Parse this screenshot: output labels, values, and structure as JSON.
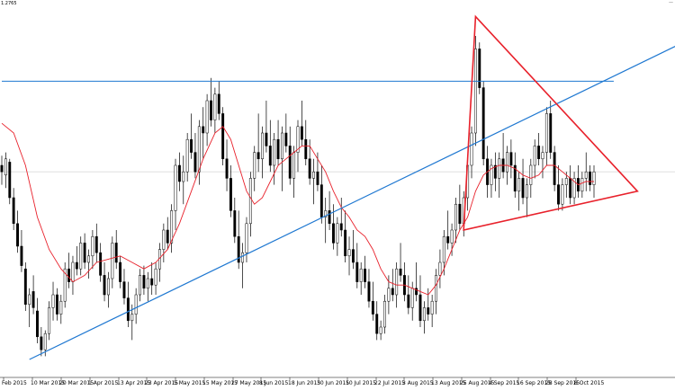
{
  "header": {
    "price_label": "1.2765",
    "corner_mark": "—"
  },
  "colors": {
    "candle_up": "#ffffff",
    "candle_down": "#000000",
    "wick": "#000000",
    "moving_average": "#e8212b",
    "support_line": "#1f78d1",
    "horizontal_line": "#1f78d1",
    "triangle": "#e8212b",
    "grid_line": "#d9d9d9"
  },
  "chart_data": {
    "type": "candlestick",
    "title": "",
    "xlabel": "",
    "ylabel": "",
    "ylim": [
      0,
      100
    ],
    "grid": "one light horizontal line at the current price level",
    "x_tick_labels": [
      "Feb 2015",
      "10 Mar 2015",
      "20 Mar 2015",
      "1 Apr 2015",
      "13 Apr 2015",
      "23 Apr 2015",
      "5 May 2015",
      "15 May 2015",
      "27 May 2015",
      "8 Jun 2015",
      "18 Jun 2015",
      "30 Jun 2015",
      "10 Jul 2015",
      "22 Jul 2015",
      "3 Aug 2015",
      "13 Aug 2015",
      "25 Aug 2015",
      "4 Sep 2015",
      "16 Sep 2015",
      "28 Sep 2015",
      "8 Oct 2015"
    ],
    "candles": [
      [
        0,
        60,
        63,
        54,
        58
      ],
      [
        1,
        57,
        64,
        53,
        62
      ],
      [
        2,
        61,
        62,
        48,
        50
      ],
      [
        3,
        50,
        53,
        40,
        42
      ],
      [
        4,
        42,
        46,
        33,
        35
      ],
      [
        5,
        35,
        40,
        27,
        29
      ],
      [
        6,
        28,
        30,
        15,
        17
      ],
      [
        7,
        17,
        22,
        10,
        20
      ],
      [
        8,
        21,
        26,
        14,
        16
      ],
      [
        9,
        15,
        19,
        5,
        7
      ],
      [
        10,
        7,
        10,
        1,
        3
      ],
      [
        11,
        3,
        9,
        1,
        8
      ],
      [
        12,
        8,
        18,
        6,
        16
      ],
      [
        13,
        16,
        24,
        12,
        20
      ],
      [
        14,
        20,
        22,
        12,
        14
      ],
      [
        15,
        14,
        20,
        11,
        18
      ],
      [
        16,
        18,
        30,
        16,
        28
      ],
      [
        17,
        28,
        33,
        22,
        24
      ],
      [
        18,
        24,
        32,
        20,
        30
      ],
      [
        19,
        30,
        35,
        26,
        28
      ],
      [
        20,
        28,
        38,
        26,
        36
      ],
      [
        21,
        36,
        39,
        28,
        30
      ],
      [
        22,
        30,
        34,
        25,
        32
      ],
      [
        23,
        32,
        40,
        28,
        38
      ],
      [
        24,
        38,
        42,
        30,
        33
      ],
      [
        25,
        33,
        36,
        24,
        26
      ],
      [
        26,
        26,
        30,
        18,
        20
      ],
      [
        27,
        20,
        27,
        16,
        25
      ],
      [
        28,
        25,
        38,
        22,
        36
      ],
      [
        29,
        36,
        40,
        28,
        30
      ],
      [
        30,
        30,
        32,
        22,
        24
      ],
      [
        31,
        24,
        28,
        17,
        19
      ],
      [
        32,
        19,
        24,
        10,
        12
      ],
      [
        33,
        12,
        17,
        6,
        14
      ],
      [
        34,
        14,
        22,
        11,
        20
      ],
      [
        35,
        20,
        28,
        18,
        26
      ],
      [
        36,
        26,
        29,
        20,
        22
      ],
      [
        37,
        22,
        27,
        18,
        25
      ],
      [
        38,
        25,
        30,
        20,
        23
      ],
      [
        39,
        23,
        30,
        20,
        28
      ],
      [
        40,
        28,
        36,
        24,
        34
      ],
      [
        41,
        34,
        42,
        30,
        40
      ],
      [
        42,
        40,
        44,
        34,
        36
      ],
      [
        43,
        36,
        48,
        33,
        46
      ],
      [
        44,
        46,
        62,
        40,
        60
      ],
      [
        45,
        60,
        64,
        52,
        55
      ],
      [
        46,
        55,
        63,
        48,
        58
      ],
      [
        47,
        58,
        70,
        55,
        68
      ],
      [
        48,
        68,
        76,
        62,
        64
      ],
      [
        49,
        64,
        70,
        56,
        58
      ],
      [
        50,
        58,
        74,
        54,
        72
      ],
      [
        51,
        72,
        78,
        62,
        70
      ],
      [
        52,
        70,
        82,
        66,
        80
      ],
      [
        53,
        80,
        87,
        72,
        74
      ],
      [
        54,
        74,
        84,
        70,
        82
      ],
      [
        55,
        82,
        86,
        74,
        76
      ],
      [
        56,
        76,
        78,
        60,
        62
      ],
      [
        57,
        62,
        68,
        52,
        56
      ],
      [
        58,
        56,
        60,
        44,
        46
      ],
      [
        59,
        46,
        50,
        36,
        38
      ],
      [
        60,
        38,
        46,
        28,
        30
      ],
      [
        61,
        30,
        36,
        22,
        33
      ],
      [
        62,
        33,
        44,
        30,
        42
      ],
      [
        63,
        42,
        58,
        38,
        56
      ],
      [
        64,
        56,
        66,
        52,
        64
      ],
      [
        65,
        64,
        76,
        58,
        62
      ],
      [
        66,
        62,
        72,
        56,
        70
      ],
      [
        67,
        70,
        80,
        64,
        66
      ],
      [
        68,
        66,
        74,
        58,
        60
      ],
      [
        69,
        60,
        70,
        54,
        68
      ],
      [
        70,
        68,
        74,
        60,
        62
      ],
      [
        71,
        62,
        72,
        52,
        70
      ],
      [
        72,
        70,
        76,
        64,
        66
      ],
      [
        73,
        66,
        72,
        54,
        56
      ],
      [
        74,
        56,
        66,
        50,
        64
      ],
      [
        75,
        64,
        74,
        58,
        72
      ],
      [
        76,
        72,
        80,
        66,
        68
      ],
      [
        77,
        68,
        74,
        60,
        62
      ],
      [
        78,
        62,
        68,
        54,
        56
      ],
      [
        79,
        56,
        62,
        48,
        58
      ],
      [
        80,
        58,
        64,
        52,
        54
      ],
      [
        81,
        54,
        60,
        42,
        44
      ],
      [
        82,
        44,
        50,
        36,
        46
      ],
      [
        83,
        46,
        52,
        40,
        42
      ],
      [
        84,
        42,
        48,
        34,
        36
      ],
      [
        85,
        36,
        44,
        32,
        42
      ],
      [
        86,
        42,
        50,
        38,
        40
      ],
      [
        87,
        40,
        46,
        30,
        32
      ],
      [
        88,
        32,
        38,
        26,
        34
      ],
      [
        89,
        34,
        40,
        28,
        30
      ],
      [
        90,
        30,
        36,
        22,
        24
      ],
      [
        91,
        24,
        30,
        20,
        28
      ],
      [
        92,
        28,
        32,
        22,
        24
      ],
      [
        93,
        24,
        28,
        16,
        18
      ],
      [
        94,
        18,
        24,
        12,
        14
      ],
      [
        95,
        14,
        18,
        6,
        8
      ],
      [
        96,
        8,
        12,
        6,
        10
      ],
      [
        97,
        10,
        20,
        8,
        18
      ],
      [
        98,
        18,
        26,
        14,
        22
      ],
      [
        99,
        22,
        28,
        18,
        20
      ],
      [
        100,
        20,
        30,
        16,
        28
      ],
      [
        101,
        28,
        36,
        24,
        26
      ],
      [
        102,
        26,
        30,
        18,
        20
      ],
      [
        103,
        20,
        26,
        14,
        16
      ],
      [
        104,
        16,
        24,
        12,
        22
      ],
      [
        105,
        22,
        30,
        18,
        20
      ],
      [
        106,
        20,
        26,
        10,
        12
      ],
      [
        107,
        12,
        18,
        8,
        16
      ],
      [
        108,
        16,
        22,
        12,
        14
      ],
      [
        109,
        14,
        20,
        10,
        18
      ],
      [
        110,
        18,
        28,
        14,
        26
      ],
      [
        111,
        26,
        34,
        22,
        30
      ],
      [
        112,
        30,
        40,
        26,
        38
      ],
      [
        113,
        38,
        46,
        34,
        36
      ],
      [
        114,
        36,
        42,
        32,
        40
      ],
      [
        115,
        40,
        50,
        36,
        48
      ],
      [
        116,
        48,
        54,
        40,
        42
      ],
      [
        117,
        42,
        52,
        38,
        50
      ],
      [
        118,
        50,
        62,
        46,
        60
      ],
      [
        119,
        60,
        72,
        56,
        70
      ],
      [
        120,
        70,
        100,
        66,
        96
      ],
      [
        121,
        96,
        98,
        82,
        84
      ],
      [
        122,
        84,
        86,
        60,
        62
      ],
      [
        123,
        62,
        66,
        50,
        54
      ],
      [
        124,
        54,
        62,
        50,
        60
      ],
      [
        125,
        60,
        64,
        52,
        56
      ],
      [
        126,
        56,
        64,
        50,
        62
      ],
      [
        127,
        62,
        70,
        56,
        58
      ],
      [
        128,
        58,
        66,
        54,
        64
      ],
      [
        129,
        64,
        68,
        56,
        60
      ],
      [
        130,
        60,
        64,
        50,
        52
      ],
      [
        131,
        52,
        58,
        46,
        56
      ],
      [
        132,
        56,
        62,
        48,
        50
      ],
      [
        133,
        50,
        56,
        44,
        54
      ],
      [
        134,
        54,
        62,
        50,
        60
      ],
      [
        135,
        60,
        68,
        56,
        66
      ],
      [
        136,
        66,
        70,
        60,
        62
      ],
      [
        137,
        62,
        66,
        56,
        64
      ],
      [
        138,
        64,
        78,
        60,
        76
      ],
      [
        139,
        76,
        80,
        62,
        64
      ],
      [
        140,
        64,
        66,
        52,
        54
      ],
      [
        141,
        54,
        60,
        46,
        48
      ],
      [
        142,
        48,
        56,
        46,
        54
      ],
      [
        143,
        54,
        58,
        50,
        56
      ],
      [
        144,
        56,
        60,
        48,
        50
      ],
      [
        145,
        50,
        58,
        48,
        56
      ],
      [
        146,
        56,
        60,
        50,
        52
      ],
      [
        147,
        52,
        58,
        50,
        56
      ],
      [
        148,
        56,
        64,
        52,
        58
      ],
      [
        149,
        58,
        60,
        52,
        54
      ],
      [
        150,
        54,
        60,
        50,
        58
      ]
    ],
    "moving_average": [
      [
        0,
        73
      ],
      [
        3,
        70
      ],
      [
        6,
        60
      ],
      [
        9,
        44
      ],
      [
        12,
        34
      ],
      [
        15,
        28
      ],
      [
        18,
        24
      ],
      [
        21,
        26
      ],
      [
        24,
        30
      ],
      [
        27,
        31
      ],
      [
        30,
        32
      ],
      [
        33,
        30
      ],
      [
        36,
        28
      ],
      [
        39,
        30
      ],
      [
        42,
        34
      ],
      [
        45,
        42
      ],
      [
        48,
        52
      ],
      [
        51,
        62
      ],
      [
        54,
        70
      ],
      [
        56,
        72
      ],
      [
        58,
        68
      ],
      [
        60,
        60
      ],
      [
        62,
        52
      ],
      [
        64,
        48
      ],
      [
        66,
        50
      ],
      [
        68,
        55
      ],
      [
        70,
        60
      ],
      [
        72,
        62
      ],
      [
        74,
        64
      ],
      [
        76,
        66
      ],
      [
        78,
        66
      ],
      [
        80,
        62
      ],
      [
        82,
        58
      ],
      [
        84,
        52
      ],
      [
        86,
        47
      ],
      [
        88,
        44
      ],
      [
        90,
        40
      ],
      [
        92,
        38
      ],
      [
        94,
        34
      ],
      [
        96,
        28
      ],
      [
        98,
        24
      ],
      [
        100,
        23
      ],
      [
        102,
        23
      ],
      [
        104,
        22
      ],
      [
        106,
        21
      ],
      [
        108,
        20
      ],
      [
        110,
        23
      ],
      [
        112,
        28
      ],
      [
        114,
        34
      ],
      [
        116,
        40
      ],
      [
        118,
        44
      ],
      [
        120,
        52
      ],
      [
        122,
        57
      ],
      [
        124,
        59
      ],
      [
        126,
        60
      ],
      [
        128,
        60
      ],
      [
        130,
        59
      ],
      [
        132,
        57
      ],
      [
        134,
        56
      ],
      [
        136,
        57
      ],
      [
        138,
        60
      ],
      [
        140,
        60
      ],
      [
        142,
        58
      ],
      [
        144,
        56
      ],
      [
        146,
        54
      ],
      [
        148,
        55
      ],
      [
        150,
        55
      ]
    ],
    "support_line": [
      [
        7,
        0
      ],
      [
        176,
        100
      ]
    ],
    "horizontal_line": [
      [
        0,
        86
      ],
      [
        155,
        86
      ]
    ],
    "triangle": [
      [
        120,
        106
      ],
      [
        161,
        52
      ],
      [
        117,
        40
      ]
    ]
  }
}
